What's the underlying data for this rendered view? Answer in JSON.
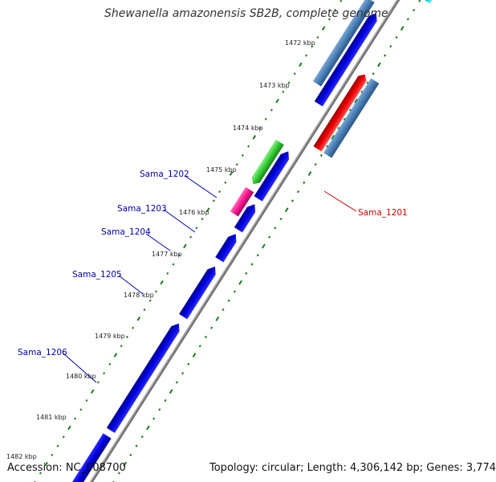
{
  "title": "Shewanella amazonensis SB2B, complete genome",
  "footer": {
    "accession": "Accession: NC_008700",
    "summary": "Topology: circular; Length: 4,306,142 bp; Genes: 3,774"
  },
  "ruler": {
    "ticks": [
      "1472 kbp",
      "1473 kbp",
      "1474 kbp",
      "1475 kbp",
      "1476 kbp",
      "1477 kbp",
      "1478 kbp",
      "1479 kbp",
      "1480 kbp",
      "1481 kbp",
      "1482 kbp"
    ]
  },
  "gene_labels": [
    {
      "text": "Sama_1201",
      "color": "#cc0000"
    },
    {
      "text": "Sama_1202",
      "color": "#0000aa"
    },
    {
      "text": "Sama_1203",
      "color": "#0000aa"
    },
    {
      "text": "Sama_1204",
      "color": "#0000aa"
    },
    {
      "text": "Sama_1205",
      "color": "#0000aa"
    },
    {
      "text": "Sama_1206",
      "color": "#0000aa"
    }
  ],
  "colors": {
    "cds_blue": "#0000ee",
    "steel_blue": "#4a7fb5",
    "red": "#ee0000",
    "green": "#33cc33",
    "magenta": "#ff1493",
    "cyan": "#00cccc",
    "backbone": "#888888",
    "tick_green": "#1a7a1a"
  }
}
